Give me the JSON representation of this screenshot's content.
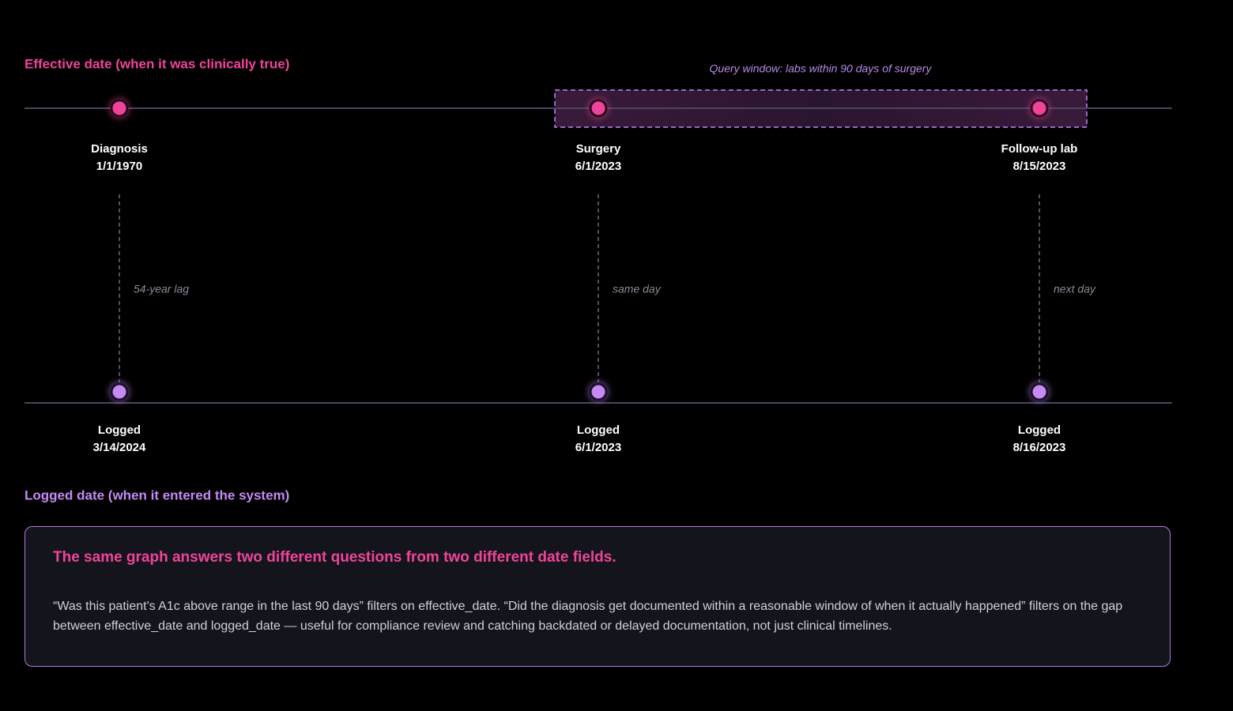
{
  "effective_label": "Effective date (when it was clinically true)",
  "logged_label": "Logged date (when it entered the system)",
  "query_window": {
    "label": "Query window: labs within 90 days of surgery"
  },
  "events": [
    {
      "name": "Diagnosis",
      "effective_date": "1/1/1970",
      "lag": "54-year lag",
      "logged_name": "Logged",
      "logged_date": "3/14/2024"
    },
    {
      "name": "Surgery",
      "effective_date": "6/1/2023",
      "lag": "same day",
      "logged_name": "Logged",
      "logged_date": "6/1/2023"
    },
    {
      "name": "Follow-up lab",
      "effective_date": "8/15/2023",
      "lag": "next day",
      "logged_name": "Logged",
      "logged_date": "8/16/2023"
    }
  ],
  "note": {
    "title": "The same graph answers two different questions from two different date fields.",
    "body": "“Was this patient's A1c above range in the last 90 days” filters on effective_date. “Did the diagnosis get documented within a reasonable window of when it actually happened” filters on the gap between effective_date and logged_date — useful for compliance review and catching backdated or delayed documentation, not just clinical timelines."
  }
}
